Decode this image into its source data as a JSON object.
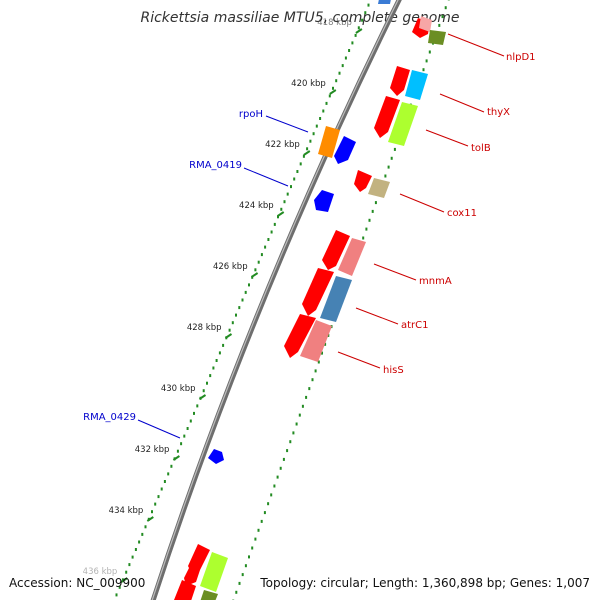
{
  "title": "Rickettsia massiliae MTU5, complete genome",
  "footer": {
    "accession": "Accession: NC_009900",
    "info": "Topology: circular; Length: 1,360,898 bp; Genes: 1,007"
  },
  "scale_ticks": [
    {
      "label": "418 kbp"
    },
    {
      "label": "420 kbp"
    },
    {
      "label": "422 kbp"
    },
    {
      "label": "424 kbp"
    },
    {
      "label": "426 kbp"
    },
    {
      "label": "428 kbp"
    },
    {
      "label": "430 kbp"
    },
    {
      "label": "432 kbp"
    },
    {
      "label": "434 kbp"
    },
    {
      "label": "436 kbp"
    }
  ],
  "gene_labels": [
    {
      "name": "nlpD1",
      "color": "#cc0000"
    },
    {
      "name": "thyX",
      "color": "#cc0000"
    },
    {
      "name": "tolB",
      "color": "#cc0000"
    },
    {
      "name": "cox11",
      "color": "#cc0000"
    },
    {
      "name": "mnmA",
      "color": "#cc0000"
    },
    {
      "name": "atrC1",
      "color": "#cc0000"
    },
    {
      "name": "hisS",
      "color": "#cc0000"
    },
    {
      "name": "rpoH",
      "color": "#0000cc"
    },
    {
      "name": "RMA_0419",
      "color": "#0000cc"
    },
    {
      "name": "RMA_0429",
      "color": "#0000cc"
    }
  ],
  "colors": {
    "backbone": "#808080",
    "ruler_dots": "#228b22",
    "forward_strand": "#0000ff",
    "reverse_strand": "#ff0000"
  }
}
